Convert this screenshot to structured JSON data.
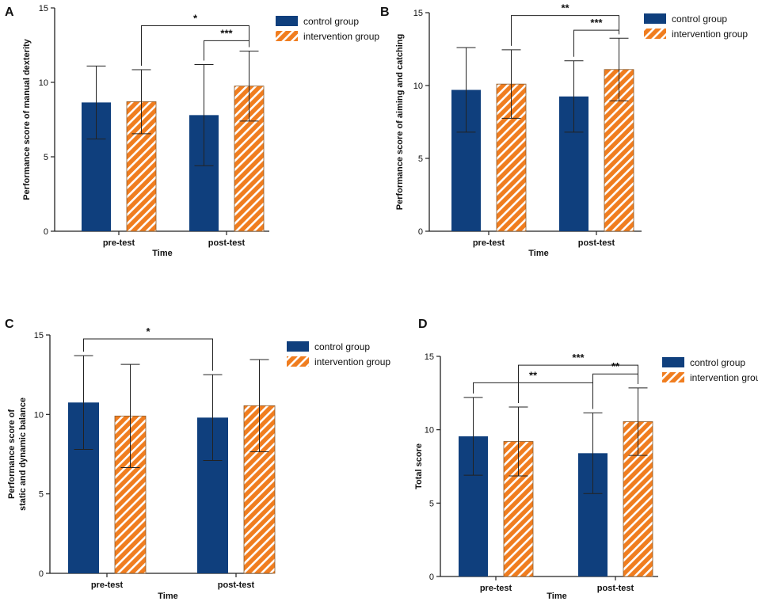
{
  "colors": {
    "control": "#0f3f7d",
    "intervention": "#f07d1f",
    "stripe": "#ffffff",
    "axis": "#222222"
  },
  "chart_data": [
    {
      "id": "A",
      "panel_label": "A",
      "type": "bar",
      "title": "",
      "categories": [
        "pre-test",
        "post-test"
      ],
      "xlabel": "Time",
      "ylabel": "Performance score of manual dexterity",
      "ylim": [
        0,
        15
      ],
      "yticks": [
        0,
        5,
        10,
        15
      ],
      "grid": false,
      "legend_position": "top-right",
      "series": [
        {
          "name": "control group",
          "key": "control",
          "values": [
            8.65,
            7.8
          ],
          "errors": [
            2.45,
            3.4
          ]
        },
        {
          "name": "intervention group",
          "key": "intervention",
          "values": [
            8.7,
            9.75
          ],
          "errors": [
            2.15,
            2.35
          ]
        }
      ],
      "significance": [
        {
          "from": [
            0,
            1
          ],
          "to": [
            1,
            1
          ],
          "label": "*",
          "y": 13.8
        },
        {
          "from": [
            1,
            0
          ],
          "to": [
            1,
            1
          ],
          "label": "***",
          "y": 12.8
        }
      ]
    },
    {
      "id": "B",
      "panel_label": "B",
      "type": "bar",
      "title": "",
      "categories": [
        "pre-test",
        "post-test"
      ],
      "xlabel": "Time",
      "ylabel": "Performance score of aiming and catching",
      "ylim": [
        0,
        15
      ],
      "yticks": [
        0,
        5,
        10,
        15
      ],
      "grid": false,
      "legend_position": "top-right",
      "series": [
        {
          "name": "control group",
          "key": "control",
          "values": [
            9.7,
            9.25
          ],
          "errors": [
            2.9,
            2.45
          ]
        },
        {
          "name": "intervention group",
          "key": "intervention",
          "values": [
            10.1,
            11.1
          ],
          "errors": [
            2.35,
            2.15
          ]
        }
      ],
      "significance": [
        {
          "from": [
            0,
            1
          ],
          "to": [
            1,
            1
          ],
          "label": "**",
          "y": 14.8
        },
        {
          "from": [
            1,
            0
          ],
          "to": [
            1,
            1
          ],
          "label": "***",
          "y": 13.8
        }
      ]
    },
    {
      "id": "C",
      "panel_label": "C",
      "type": "bar",
      "title": "",
      "categories": [
        "pre-test",
        "post-test"
      ],
      "xlabel": "Time",
      "ylabel_lines": [
        "Performance score of",
        "static and dynamic balance"
      ],
      "ylim": [
        0,
        15
      ],
      "yticks": [
        0,
        5,
        10,
        15
      ],
      "grid": false,
      "legend_position": "top-right",
      "series": [
        {
          "name": "control group",
          "key": "control",
          "values": [
            10.75,
            9.8
          ],
          "errors": [
            2.95,
            2.7
          ]
        },
        {
          "name": "intervention group",
          "key": "intervention",
          "values": [
            9.9,
            10.55
          ],
          "errors": [
            3.25,
            2.9
          ]
        }
      ],
      "significance": [
        {
          "from": [
            0,
            0
          ],
          "to": [
            1,
            0
          ],
          "label": "*",
          "y": 14.75
        }
      ]
    },
    {
      "id": "D",
      "panel_label": "D",
      "type": "bar",
      "title": "",
      "categories": [
        "pre-test",
        "post-test"
      ],
      "xlabel": "Time",
      "ylabel": "Total score",
      "ylim": [
        0,
        15
      ],
      "yticks": [
        0,
        5,
        10,
        15
      ],
      "grid": false,
      "legend_position": "top-right",
      "series": [
        {
          "name": "control group",
          "key": "control",
          "values": [
            9.55,
            8.4
          ],
          "errors": [
            2.65,
            2.75
          ]
        },
        {
          "name": "intervention group",
          "key": "intervention",
          "values": [
            9.2,
            10.55
          ],
          "errors": [
            2.35,
            2.3
          ]
        }
      ],
      "significance": [
        {
          "from": [
            0,
            0
          ],
          "to": [
            1,
            0
          ],
          "label": "**",
          "y": 13.2
        },
        {
          "from": [
            0,
            1
          ],
          "to": [
            1,
            1
          ],
          "label": "***",
          "y": 14.4
        },
        {
          "from": [
            1,
            0
          ],
          "to": [
            1,
            1
          ],
          "label": "**",
          "y": 13.8
        }
      ]
    }
  ]
}
